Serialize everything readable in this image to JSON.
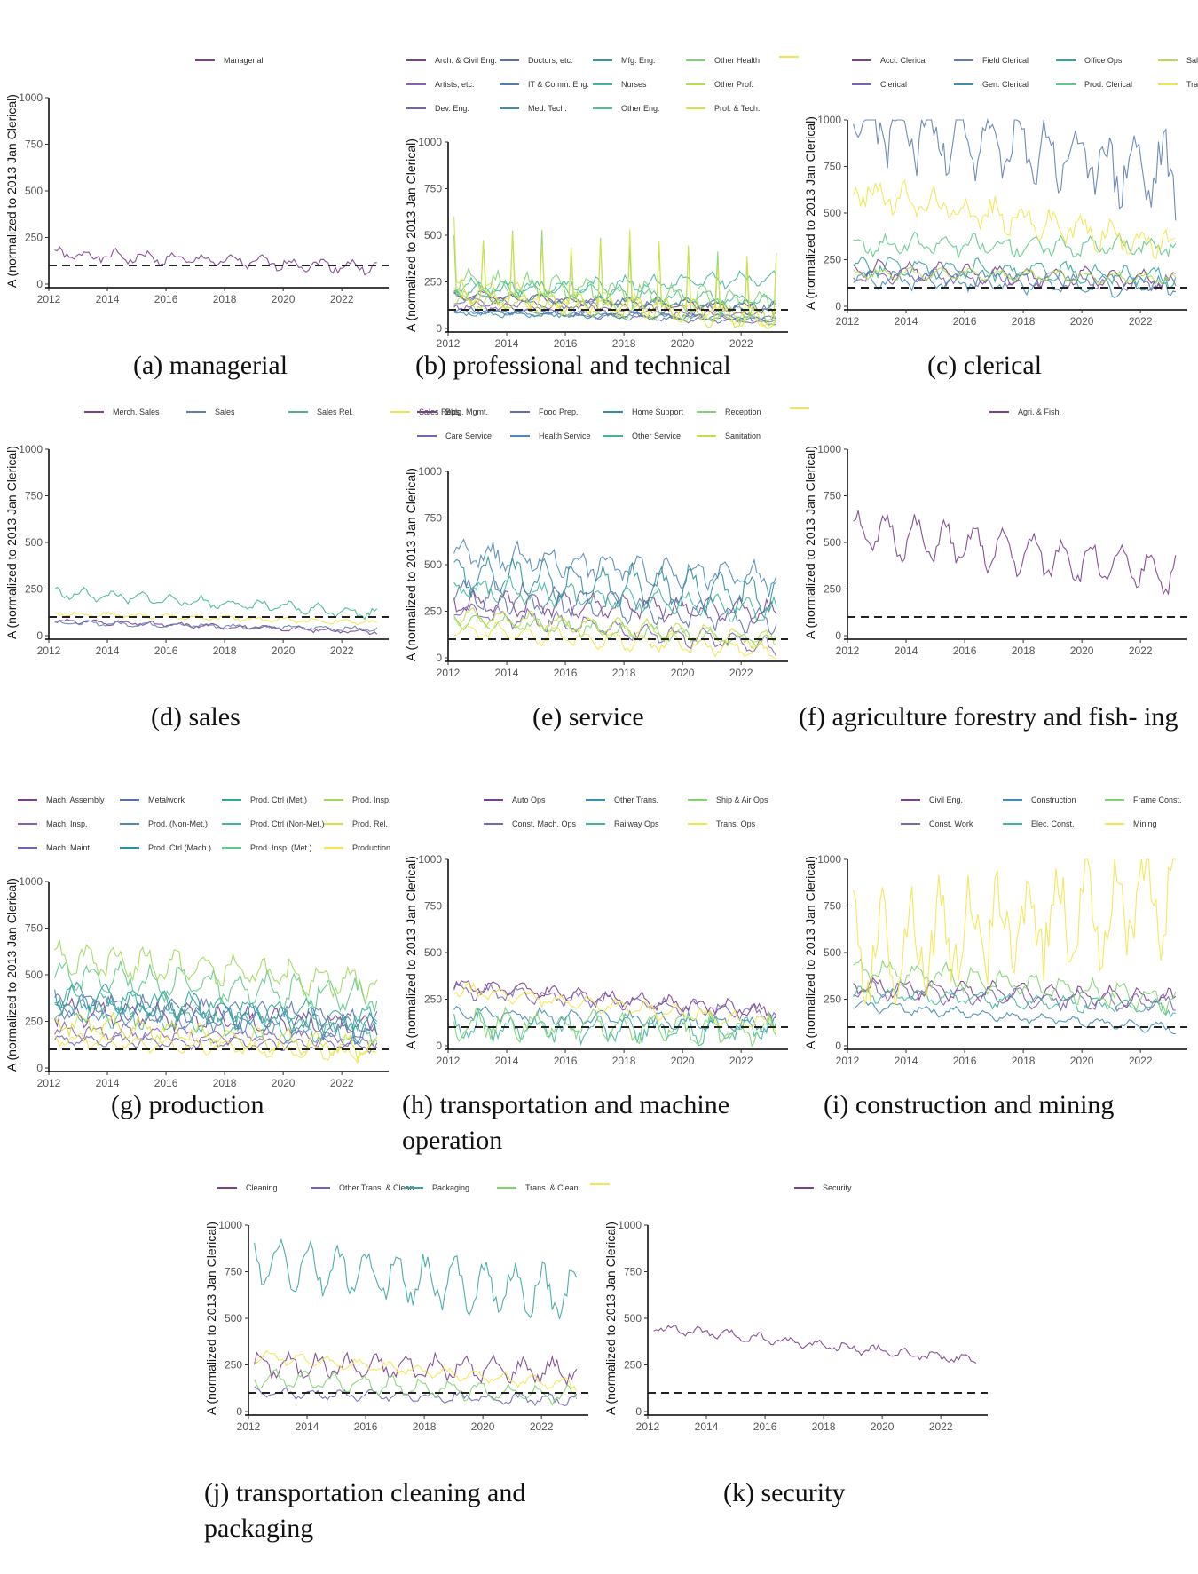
{
  "chart_data": [
    {
      "id": "a",
      "type": "line",
      "caption": "(a) managerial",
      "ylabel": "A (normalized to 2013 Jan Clerical)",
      "xlim": [
        2012,
        2023.6
      ],
      "ylim": [
        0,
        1000
      ],
      "xticks": [
        2012,
        2014,
        2016,
        2018,
        2020,
        2022
      ],
      "yticks": [
        0,
        250,
        500,
        750,
        1000
      ],
      "reference_line": 100,
      "series": [
        {
          "name": "Managerial",
          "color": "#7b3f8c",
          "start": 160,
          "end": 90,
          "season": 25,
          "noise": 20,
          "seed": 1
        }
      ]
    },
    {
      "id": "b",
      "type": "line",
      "caption": "(b) professional and technical",
      "ylabel": "A (normalized to 2013 Jan Clerical)",
      "xlim": [
        2012,
        2023.6
      ],
      "ylim": [
        0,
        1000
      ],
      "xticks": [
        2012,
        2014,
        2016,
        2018,
        2020,
        2022
      ],
      "yticks": [
        0,
        250,
        500,
        750,
        1000
      ],
      "reference_line": 100,
      "series": [
        {
          "name": "Arch. & Civil Eng.",
          "color": "#7b3f8c",
          "start": 180,
          "end": 110,
          "season": 20,
          "noise": 15,
          "seed": 2
        },
        {
          "name": "Artists, etc.",
          "color": "#8a5fb0",
          "start": 120,
          "end": 60,
          "season": 15,
          "noise": 15,
          "seed": 3
        },
        {
          "name": "Dev. Eng.",
          "color": "#6f66b3",
          "start": 150,
          "end": 90,
          "season": 20,
          "noise": 15,
          "seed": 4
        },
        {
          "name": "Doctors, etc.",
          "color": "#5b6fb0",
          "start": 100,
          "end": 30,
          "season": 10,
          "noise": 10,
          "seed": 5
        },
        {
          "name": "IT & Comm. Eng.",
          "color": "#4f7fb5",
          "start": 90,
          "end": 50,
          "season": 10,
          "noise": 10,
          "seed": 6
        },
        {
          "name": "Med. Tech.",
          "color": "#3f8db0",
          "start": 80,
          "end": 60,
          "season": 10,
          "noise": 10,
          "seed": 7
        },
        {
          "name": "Mfg. Eng.",
          "color": "#2e9fa0",
          "start": 170,
          "end": 120,
          "season": 20,
          "noise": 15,
          "seed": 8
        },
        {
          "name": "Nurses",
          "color": "#3fb7a0",
          "start": 200,
          "end": 270,
          "season": 30,
          "noise": 20,
          "seed": 9
        },
        {
          "name": "Other Eng.",
          "color": "#4dc18a",
          "start": 230,
          "end": 150,
          "season": 30,
          "noise": 20,
          "seed": 10
        },
        {
          "name": "Other Health",
          "color": "#7fd36e",
          "start": 250,
          "end": 120,
          "season": 60,
          "noise": 30,
          "seed": 11,
          "spikes": true
        },
        {
          "name": "Other Prof.",
          "color": "#b5de4f",
          "start": 150,
          "end": 60,
          "season": 40,
          "noise": 20,
          "seed": 12
        },
        {
          "name": "Prof. & Tech.",
          "color": "#d8e23a",
          "start": 200,
          "end": 50,
          "season": 60,
          "noise": 20,
          "seed": 13,
          "spikes": true
        },
        {
          "name": "",
          "color": "#f5e44a",
          "start": 180,
          "end": 60,
          "season": 40,
          "noise": 20,
          "seed": 14
        }
      ]
    },
    {
      "id": "c",
      "type": "line",
      "caption": "(c) clerical",
      "ylabel": "A (normalized to 2013 Jan Clerical)",
      "xlim": [
        2012,
        2023.6
      ],
      "ylim": [
        0,
        1000
      ],
      "xticks": [
        2012,
        2014,
        2016,
        2018,
        2020,
        2022
      ],
      "yticks": [
        0,
        250,
        500,
        750,
        1000
      ],
      "reference_line": 100,
      "series": [
        {
          "name": "Acct. Clerical",
          "color": "#7b3f8c",
          "start": 200,
          "end": 140,
          "season": 40,
          "noise": 20,
          "seed": 21
        },
        {
          "name": "Clerical",
          "color": "#7a62b5",
          "start": 170,
          "end": 120,
          "season": 30,
          "noise": 20,
          "seed": 22
        },
        {
          "name": "Field Clerical",
          "color": "#5f7fb0",
          "start": 1000,
          "end": 700,
          "season": 150,
          "noise": 120,
          "seed": 23,
          "cap": 1000
        },
        {
          "name": "Gen. Clerical",
          "color": "#3f8db0",
          "start": 150,
          "end": 100,
          "season": 40,
          "noise": 25,
          "seed": 24
        },
        {
          "name": "Office Ops",
          "color": "#2ea89a",
          "start": 220,
          "end": 160,
          "season": 40,
          "noise": 25,
          "seed": 25
        },
        {
          "name": "Prod. Clerical",
          "color": "#5cc98a",
          "start": 330,
          "end": 320,
          "season": 40,
          "noise": 30,
          "seed": 26
        },
        {
          "name": "Sales Clerical",
          "color": "#b5de4f",
          "start": 180,
          "end": 150,
          "season": 25,
          "noise": 15,
          "seed": 27
        },
        {
          "name": "Trans. Clerical",
          "color": "#f5e44a",
          "start": 620,
          "end": 320,
          "season": 60,
          "noise": 50,
          "seed": 28
        }
      ]
    },
    {
      "id": "d",
      "type": "line",
      "caption": "(d) sales",
      "ylabel": "A (normalized to 2013 Jan Clerical)",
      "xlim": [
        2012,
        2023.6
      ],
      "ylim": [
        0,
        1000
      ],
      "xticks": [
        2012,
        2014,
        2016,
        2018,
        2020,
        2022
      ],
      "yticks": [
        0,
        250,
        500,
        750,
        1000
      ],
      "reference_line": 100,
      "series": [
        {
          "name": "Merch. Sales",
          "color": "#7b3f8c",
          "start": 80,
          "end": 20,
          "season": 8,
          "noise": 8,
          "seed": 31
        },
        {
          "name": "Sales",
          "color": "#5f7fb0",
          "start": 70,
          "end": 35,
          "season": 8,
          "noise": 8,
          "seed": 32
        },
        {
          "name": "Sales Rel.",
          "color": "#3fb98a",
          "start": 230,
          "end": 120,
          "season": 25,
          "noise": 15,
          "seed": 33
        },
        {
          "name": "Sales Reps",
          "color": "#f5e44a",
          "start": 120,
          "end": 70,
          "season": 10,
          "noise": 8,
          "seed": 34
        }
      ]
    },
    {
      "id": "e",
      "type": "line",
      "caption": "(e) service",
      "ylabel": "A (normalized to 2013 Jan Clerical)",
      "xlim": [
        2012,
        2023.6
      ],
      "ylim": [
        0,
        1000
      ],
      "xticks": [
        2012,
        2014,
        2016,
        2018,
        2020,
        2022
      ],
      "yticks": [
        0,
        250,
        500,
        750,
        1000
      ],
      "reference_line": 100,
      "series": [
        {
          "name": "Bldg. Mgmt.",
          "color": "#7b3f8c",
          "start": 300,
          "end": 250,
          "season": 50,
          "noise": 30,
          "seed": 41
        },
        {
          "name": "Care Service",
          "color": "#7a62b5",
          "start": 250,
          "end": 60,
          "season": 40,
          "noise": 25,
          "seed": 42
        },
        {
          "name": "Food Prep.",
          "color": "#5b6fb0",
          "start": 350,
          "end": 200,
          "season": 60,
          "noise": 30,
          "seed": 43
        },
        {
          "name": "Health Service",
          "color": "#4f88b5",
          "start": 560,
          "end": 420,
          "season": 60,
          "noise": 40,
          "seed": 44
        },
        {
          "name": "Home Support",
          "color": "#2e8fa0",
          "start": 450,
          "end": 330,
          "season": 90,
          "noise": 40,
          "seed": 45
        },
        {
          "name": "Other Service",
          "color": "#3fb7a0",
          "start": 380,
          "end": 250,
          "season": 50,
          "noise": 30,
          "seed": 46
        },
        {
          "name": "Reception",
          "color": "#7fd36e",
          "start": 200,
          "end": 90,
          "season": 30,
          "noise": 20,
          "seed": 47
        },
        {
          "name": "Sanitation",
          "color": "#c5df45",
          "start": 230,
          "end": 100,
          "season": 40,
          "noise": 20,
          "seed": 48
        },
        {
          "name": "",
          "color": "#f5e44a",
          "start": 150,
          "end": 40,
          "season": 40,
          "noise": 20,
          "seed": 49
        }
      ]
    },
    {
      "id": "f",
      "type": "line",
      "caption": "(f) agriculture forestry and fish- ing",
      "ylabel": "A (normalized to 2013 Jan Clerical)",
      "xlim": [
        2012,
        2023.6
      ],
      "ylim": [
        0,
        1000
      ],
      "xticks": [
        2012,
        2014,
        2016,
        2018,
        2020,
        2022
      ],
      "yticks": [
        0,
        250,
        500,
        750,
        1000
      ],
      "reference_line": 100,
      "series": [
        {
          "name": "Agri. & Fish.",
          "color": "#7b3f8c",
          "start": 560,
          "end": 330,
          "season": 100,
          "noise": 40,
          "seed": 51
        }
      ]
    },
    {
      "id": "g",
      "type": "line",
      "caption": "(g) production",
      "ylabel": "A (normalized to 2013 Jan Clerical)",
      "xlim": [
        2012,
        2023.6
      ],
      "ylim": [
        0,
        1000
      ],
      "xticks": [
        2012,
        2014,
        2016,
        2018,
        2020,
        2022
      ],
      "yticks": [
        0,
        250,
        500,
        750,
        1000
      ],
      "reference_line": 100,
      "series": [
        {
          "name": "Mach. Assembly",
          "color": "#7b3f8c",
          "start": 300,
          "end": 230,
          "season": 50,
          "noise": 30,
          "seed": 61
        },
        {
          "name": "Mach. Insp.",
          "color": "#8a5fb0",
          "start": 200,
          "end": 150,
          "season": 30,
          "noise": 20,
          "seed": 62
        },
        {
          "name": "Mach. Maint.",
          "color": "#6f66b3",
          "start": 150,
          "end": 120,
          "season": 25,
          "noise": 15,
          "seed": 63
        },
        {
          "name": "Metalwork",
          "color": "#5b6fb0",
          "start": 350,
          "end": 250,
          "season": 50,
          "noise": 30,
          "seed": 64
        },
        {
          "name": "Prod. (Non-Met.)",
          "color": "#4f88b5",
          "start": 330,
          "end": 200,
          "season": 50,
          "noise": 30,
          "seed": 65
        },
        {
          "name": "Prod. Ctrl (Mach.)",
          "color": "#2e8fa0",
          "start": 400,
          "end": 200,
          "season": 60,
          "noise": 30,
          "seed": 66
        },
        {
          "name": "Prod. Ctrl (Met.)",
          "color": "#2ea89a",
          "start": 380,
          "end": 270,
          "season": 50,
          "noise": 30,
          "seed": 67
        },
        {
          "name": "Prod. Ctrl (Non-Met.)",
          "color": "#3fb7a0",
          "start": 300,
          "end": 180,
          "season": 50,
          "noise": 30,
          "seed": 68
        },
        {
          "name": "Prod. Insp. (Met.)",
          "color": "#5cc98a",
          "start": 500,
          "end": 380,
          "season": 70,
          "noise": 40,
          "seed": 69
        },
        {
          "name": "Prod. Insp.",
          "color": "#9fd85a",
          "start": 600,
          "end": 450,
          "season": 70,
          "noise": 40,
          "seed": 70
        },
        {
          "name": "Prod. Rel.",
          "color": "#d8e23a",
          "start": 250,
          "end": 100,
          "season": 50,
          "noise": 30,
          "seed": 71
        },
        {
          "name": "Production",
          "color": "#f5e44a",
          "start": 150,
          "end": 70,
          "season": 30,
          "noise": 20,
          "seed": 72
        }
      ]
    },
    {
      "id": "h",
      "type": "line",
      "caption": "(h) transportation and machine operation",
      "ylabel": "A (normalized to 2013 Jan Clerical)",
      "xlim": [
        2012,
        2023.6
      ],
      "ylim": [
        0,
        1000
      ],
      "xticks": [
        2012,
        2014,
        2016,
        2018,
        2020,
        2022
      ],
      "yticks": [
        0,
        250,
        500,
        750,
        1000
      ],
      "reference_line": 100,
      "series": [
        {
          "name": "Auto Ops",
          "color": "#7b3f8c",
          "start": 330,
          "end": 180,
          "season": 30,
          "noise": 20,
          "seed": 81
        },
        {
          "name": "Const. Mach. Ops",
          "color": "#7a62b5",
          "start": 300,
          "end": 170,
          "season": 30,
          "noise": 20,
          "seed": 82
        },
        {
          "name": "Other Trans.",
          "color": "#3f8db0",
          "start": 180,
          "end": 110,
          "season": 30,
          "noise": 20,
          "seed": 83
        },
        {
          "name": "Railway Ops",
          "color": "#3fb7a0",
          "start": 100,
          "end": 80,
          "season": 50,
          "noise": 40,
          "seed": 84
        },
        {
          "name": "Ship & Air Ops",
          "color": "#7fd36e",
          "start": 120,
          "end": 80,
          "season": 60,
          "noise": 40,
          "seed": 85
        },
        {
          "name": "Trans. Ops",
          "color": "#f5e44a",
          "start": 300,
          "end": 120,
          "season": 30,
          "noise": 20,
          "seed": 86
        }
      ]
    },
    {
      "id": "i",
      "type": "line",
      "caption": "(i) construction and mining",
      "ylabel": "A (normalized to 2013 Jan Clerical)",
      "xlim": [
        2012,
        2023.6
      ],
      "ylim": [
        0,
        1000
      ],
      "xticks": [
        2012,
        2014,
        2016,
        2018,
        2020,
        2022
      ],
      "yticks": [
        0,
        250,
        500,
        750,
        1000
      ],
      "reference_line": 100,
      "series": [
        {
          "name": "Civil Eng.",
          "color": "#7b3f8c",
          "start": 320,
          "end": 250,
          "season": 40,
          "noise": 20,
          "seed": 91
        },
        {
          "name": "Const. Work",
          "color": "#7a62b5",
          "start": 300,
          "end": 220,
          "season": 40,
          "noise": 20,
          "seed": 92
        },
        {
          "name": "Construction",
          "color": "#3f8db0",
          "start": 220,
          "end": 90,
          "season": 20,
          "noise": 15,
          "seed": 93
        },
        {
          "name": "Elec. Const.",
          "color": "#3fb7a0",
          "start": 280,
          "end": 200,
          "season": 30,
          "noise": 20,
          "seed": 94
        },
        {
          "name": "Frame Const.",
          "color": "#7fd36e",
          "start": 420,
          "end": 240,
          "season": 50,
          "noise": 30,
          "seed": 95
        },
        {
          "name": "Mining",
          "color": "#f5e44a",
          "start": 500,
          "end": 800,
          "season": 200,
          "noise": 150,
          "seed": 96,
          "cap": 1000
        }
      ]
    },
    {
      "id": "j",
      "type": "line",
      "caption": "(j) transportation cleaning and packaging",
      "ylabel": "A (normalized to 2013 Jan Clerical)",
      "xlim": [
        2012,
        2023.6
      ],
      "ylim": [
        0,
        1000
      ],
      "xticks": [
        2012,
        2014,
        2016,
        2018,
        2020,
        2022
      ],
      "yticks": [
        0,
        250,
        500,
        750,
        1000
      ],
      "reference_line": 100,
      "series": [
        {
          "name": "Cleaning",
          "color": "#7b3f8c",
          "start": 250,
          "end": 220,
          "season": 50,
          "noise": 30,
          "seed": 101
        },
        {
          "name": "Other Trans. & Clean.",
          "color": "#6f66b3",
          "start": 100,
          "end": 60,
          "season": 20,
          "noise": 15,
          "seed": 102
        },
        {
          "name": "Packaging",
          "color": "#3aa5a0",
          "start": 800,
          "end": 620,
          "season": 120,
          "noise": 50,
          "seed": 103,
          "cap": 1000
        },
        {
          "name": "Trans. & Clean.",
          "color": "#7fd36e",
          "start": 180,
          "end": 80,
          "season": 40,
          "noise": 20,
          "seed": 104
        },
        {
          "name": "",
          "color": "#f5e44a",
          "start": 300,
          "end": 140,
          "season": 25,
          "noise": 15,
          "seed": 105
        }
      ]
    },
    {
      "id": "k",
      "type": "line",
      "caption": "(k) security",
      "ylabel": "A (normalized to 2013 Jan Clerical)",
      "xlim": [
        2012,
        2023.6
      ],
      "ylim": [
        0,
        1000
      ],
      "xticks": [
        2012,
        2014,
        2016,
        2018,
        2020,
        2022
      ],
      "yticks": [
        0,
        250,
        500,
        750,
        1000
      ],
      "reference_line": 100,
      "series": [
        {
          "name": "Security",
          "color": "#7b3f8c",
          "start": 450,
          "end": 270,
          "season": 20,
          "noise": 15,
          "seed": 111
        }
      ]
    }
  ]
}
